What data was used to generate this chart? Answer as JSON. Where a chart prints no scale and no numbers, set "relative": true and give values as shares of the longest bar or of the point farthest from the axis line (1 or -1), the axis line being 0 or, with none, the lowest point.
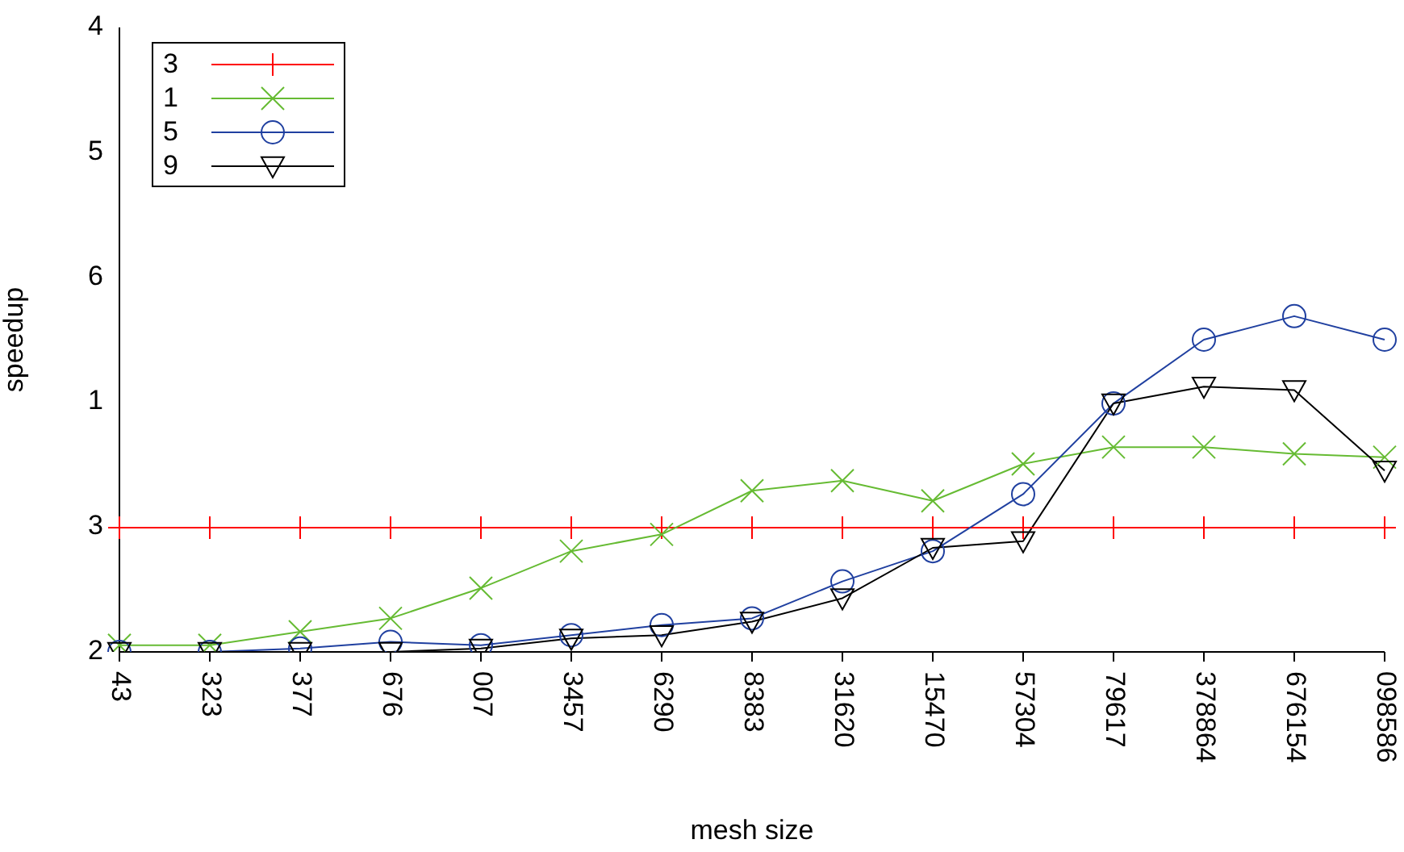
{
  "chart_data": {
    "type": "line",
    "xlabel": "mesh size",
    "ylabel": "speedup",
    "categories": [
      "43",
      "323",
      "377",
      "676",
      "007",
      "3457",
      "6290",
      "8383",
      "31620",
      "15470",
      "57304",
      "79617",
      "378864",
      "676154",
      "098586"
    ],
    "relative": true,
    "annotations": [
      "2",
      "3",
      "1",
      "6",
      "5",
      "4"
    ],
    "legend": "top left",
    "line_style": "solid",
    "series": [
      {
        "name": "3",
        "color": "#ff0000",
        "marker": "plus",
        "values": [
          0.37,
          0.37,
          0.37,
          0.37,
          0.37,
          0.37,
          0.37,
          0.37,
          0.37,
          0.37,
          0.37,
          0.37,
          0.37,
          0.37,
          0.37
        ]
      },
      {
        "name": "1",
        "color": "#66bb33",
        "marker": "cross",
        "values": [
          0.02,
          0.02,
          0.06,
          0.1,
          0.19,
          0.3,
          0.35,
          0.48,
          0.51,
          0.45,
          0.56,
          0.61,
          0.61,
          0.59,
          0.58
        ]
      },
      {
        "name": "5",
        "color": "#2040a0",
        "marker": "circle",
        "values": [
          0,
          0,
          0.01,
          0.03,
          0.02,
          0.05,
          0.08,
          0.1,
          0.21,
          0.3,
          0.47,
          0.74,
          0.93,
          1,
          0.93
        ]
      },
      {
        "name": "9",
        "color": "#000000",
        "marker": "triangle",
        "values": [
          0,
          0,
          0,
          0,
          0.01,
          0.04,
          0.05,
          0.09,
          0.16,
          0.31,
          0.33,
          0.74,
          0.79,
          0.78,
          0.54
        ]
      }
    ]
  }
}
